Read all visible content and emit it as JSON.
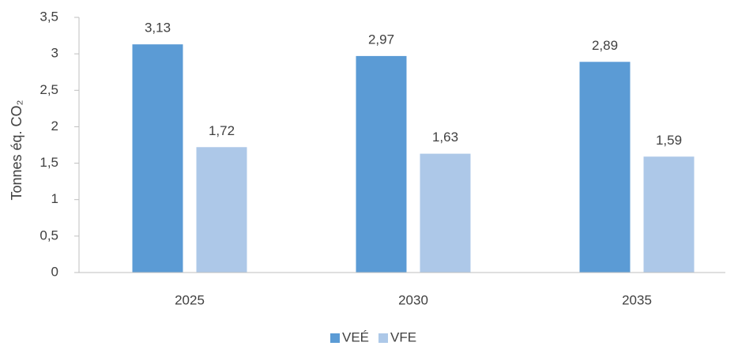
{
  "chart_data": {
    "type": "bar",
    "y_label": "Tonnes éq. CO₂",
    "categories": [
      "2025",
      "2030",
      "2035"
    ],
    "series": [
      {
        "name": "VEÉ",
        "color": "#5b9bd5",
        "values": [
          3.13,
          2.97,
          2.89
        ],
        "value_labels": [
          "3,13",
          "2,97",
          "2,89"
        ]
      },
      {
        "name": "VFE",
        "color": "#adc8e8",
        "values": [
          1.72,
          1.63,
          1.59
        ],
        "value_labels": [
          "1,72",
          "1,63",
          "1,59"
        ]
      }
    ],
    "ylim": [
      0,
      3.5
    ],
    "yticks": [
      0,
      {
        "value": 0.5,
        "label": "0,5"
      },
      1,
      {
        "value": 1.5,
        "label": "1,5"
      },
      2,
      {
        "value": 2.5,
        "label": "2,5"
      },
      3,
      {
        "value": 3.5,
        "label": "3,5"
      }
    ],
    "grid": false,
    "legend": "bottom"
  }
}
